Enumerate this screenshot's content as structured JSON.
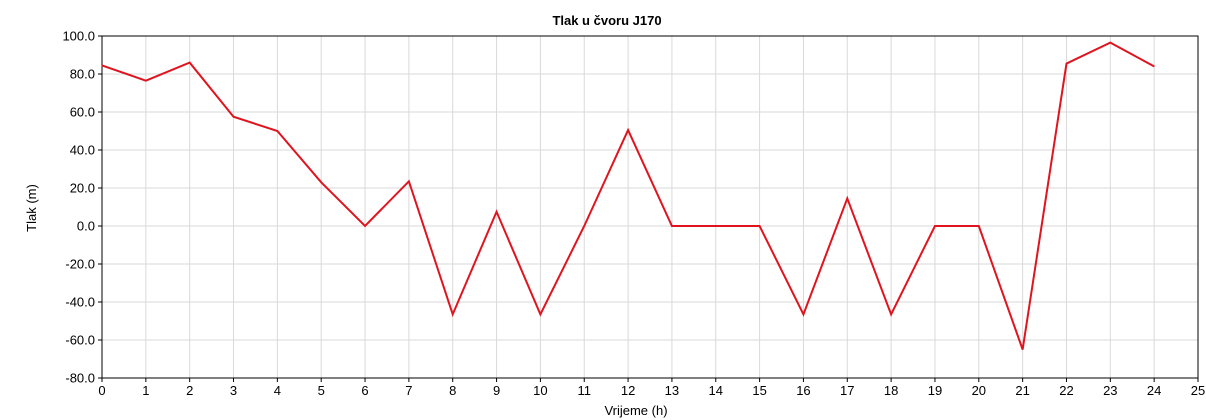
{
  "chart_data": {
    "type": "line",
    "title": "Tlak u čvoru J170",
    "xlabel": "Vrijeme (h)",
    "ylabel": "Tlak (m)",
    "xlim": [
      0,
      25
    ],
    "ylim": [
      -80,
      100
    ],
    "x_ticks": [
      "0",
      "1",
      "2",
      "3",
      "4",
      "5",
      "6",
      "7",
      "8",
      "9",
      "10",
      "11",
      "12",
      "13",
      "14",
      "15",
      "16",
      "17",
      "18",
      "19",
      "20",
      "21",
      "22",
      "23",
      "24",
      "25"
    ],
    "y_ticks": [
      "100.0",
      "80.0",
      "60.0",
      "40.0",
      "20.0",
      "0.0",
      "-20.0",
      "-40.0",
      "-60.0",
      "-80.0"
    ],
    "grid": true,
    "series": [
      {
        "color": "#e0141e",
        "x": [
          0,
          1,
          2,
          3,
          4,
          5,
          6,
          7,
          8,
          9,
          10,
          11,
          12,
          13,
          14,
          15,
          16,
          17,
          18,
          19,
          20,
          21,
          22,
          23,
          24
        ],
        "y": [
          84.5,
          76.5,
          86,
          57.5,
          50,
          23,
          0,
          23.5,
          -46.5,
          7.5,
          -46.5,
          0,
          50.5,
          0,
          0,
          0,
          -46.5,
          14.5,
          -46.5,
          0,
          0,
          -65,
          85.5,
          96.5,
          84
        ]
      }
    ]
  }
}
